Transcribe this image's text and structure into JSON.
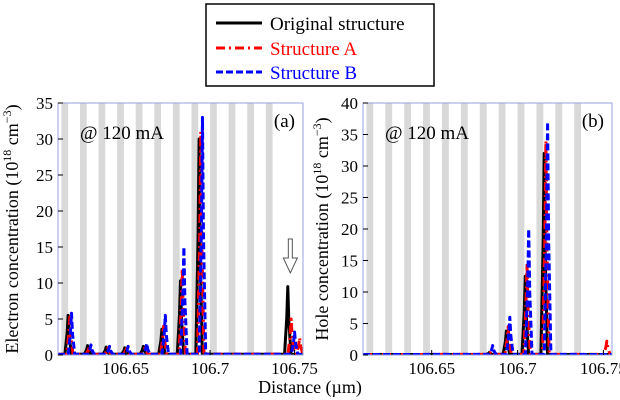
{
  "figure": {
    "xlabel_shared": "Distance (µm)",
    "legend": [
      {
        "label": "Original structure",
        "color": "#000000",
        "dash": "solid"
      },
      {
        "label": "Structure A",
        "color": "#ff0000",
        "dash": "dashdot"
      },
      {
        "label": "Structure B",
        "color": "#0000ff",
        "dash": "dashed"
      }
    ]
  },
  "chart_data": [
    {
      "type": "line",
      "panel_label": "(a)",
      "annotation": "@ 120 mA",
      "ylabel_main": "Electron concentration (10",
      "ylabel_sup1": "18",
      "ylabel_unit": " cm",
      "ylabel_sup2": "−3",
      "ylabel_end": ")",
      "xlim": [
        106.61,
        106.755
      ],
      "ylim": [
        0,
        35
      ],
      "xticks": [
        106.65,
        106.7,
        106.75
      ],
      "xtick_labels": [
        "106.65",
        "106.7",
        "106.75"
      ],
      "yticks": [
        0,
        5,
        10,
        15,
        20,
        25,
        30,
        35
      ],
      "ytick_labels": [
        "0",
        "5",
        "10",
        "15",
        "20",
        "25",
        "30",
        "35"
      ],
      "arrow_x": 106.7475,
      "barriers": [
        [
          106.612,
          106.616
        ],
        [
          106.623,
          106.627
        ],
        [
          106.634,
          106.638
        ],
        [
          106.645,
          106.649
        ],
        [
          106.656,
          106.66
        ],
        [
          106.667,
          106.671
        ],
        [
          106.678,
          106.682
        ],
        [
          106.689,
          106.693
        ],
        [
          106.7,
          106.704
        ],
        [
          106.711,
          106.715
        ],
        [
          106.722,
          106.726
        ],
        [
          106.733,
          106.737
        ]
      ],
      "series": [
        {
          "name": "Original structure",
          "peaks": [
            [
              106.616,
              5.5
            ],
            [
              106.6275,
              1.3
            ],
            [
              106.6385,
              1.1
            ],
            [
              106.6495,
              1.0
            ],
            [
              106.6605,
              1.2
            ],
            [
              106.6715,
              3.6
            ],
            [
              106.6825,
              10.3
            ],
            [
              106.6935,
              30.0
            ],
            [
              106.746,
              9.5
            ]
          ]
        },
        {
          "name": "Structure A",
          "peaks": [
            [
              106.617,
              5.3
            ],
            [
              106.6285,
              1.2
            ],
            [
              106.6395,
              1.0
            ],
            [
              106.6505,
              0.9
            ],
            [
              106.6615,
              1.0
            ],
            [
              106.6725,
              4.0
            ],
            [
              106.6835,
              12.0
            ],
            [
              106.6945,
              31.0
            ],
            [
              106.748,
              5.0
            ],
            [
              106.753,
              2.4
            ]
          ]
        },
        {
          "name": "Structure B",
          "peaks": [
            [
              106.618,
              5.8
            ],
            [
              106.6295,
              1.4
            ],
            [
              106.6405,
              1.2
            ],
            [
              106.6515,
              1.2
            ],
            [
              106.6625,
              1.6
            ],
            [
              106.6735,
              5.5
            ],
            [
              106.6845,
              15.0
            ],
            [
              106.6955,
              33.0
            ],
            [
              106.75,
              3.2
            ]
          ]
        }
      ]
    },
    {
      "type": "line",
      "panel_label": "(b)",
      "annotation": "@ 120 mA",
      "ylabel_main": "Hole concentration (10",
      "ylabel_sup1": "18",
      "ylabel_unit": " cm",
      "ylabel_sup2": "−3",
      "ylabel_end": ")",
      "xlim": [
        106.61,
        106.755
      ],
      "ylim": [
        0,
        40
      ],
      "xticks": [
        106.65,
        106.7,
        106.75
      ],
      "xtick_labels": [
        "106.65",
        "106.7",
        "106.75"
      ],
      "yticks": [
        0,
        5,
        10,
        15,
        20,
        25,
        30,
        35,
        40
      ],
      "ytick_labels": [
        "0",
        "5",
        "10",
        "15",
        "20",
        "25",
        "30",
        "35",
        "40"
      ],
      "barriers": [
        [
          106.612,
          106.616
        ],
        [
          106.623,
          106.627
        ],
        [
          106.634,
          106.638
        ],
        [
          106.645,
          106.649
        ],
        [
          106.656,
          106.66
        ],
        [
          106.667,
          106.671
        ],
        [
          106.678,
          106.682
        ],
        [
          106.689,
          106.693
        ],
        [
          106.7,
          106.704
        ],
        [
          106.711,
          106.715
        ],
        [
          106.722,
          106.726
        ],
        [
          106.733,
          106.737
        ]
      ],
      "series": [
        {
          "name": "Original structure",
          "peaks": [
            [
              106.6835,
              0.4
            ],
            [
              106.6935,
              3.8
            ],
            [
              106.7045,
              12.5
            ],
            [
              106.7155,
              32.0
            ]
          ]
        },
        {
          "name": "Structure A",
          "peaks": [
            [
              106.6845,
              0.6
            ],
            [
              106.6945,
              4.5
            ],
            [
              106.7055,
              14.5
            ],
            [
              106.7165,
              34.0
            ],
            [
              106.752,
              2.2
            ]
          ]
        },
        {
          "name": "Structure B",
          "peaks": [
            [
              106.6855,
              1.5
            ],
            [
              106.6955,
              6.0
            ],
            [
              106.7065,
              20.0
            ],
            [
              106.7175,
              37.0
            ]
          ]
        }
      ]
    }
  ]
}
